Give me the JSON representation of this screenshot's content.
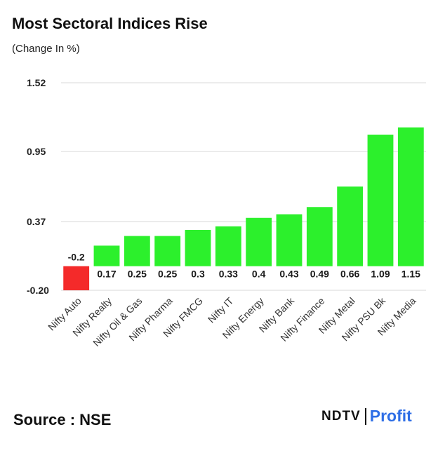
{
  "header": {
    "title": "Most Sectoral Indices Rise",
    "subtitle": "(Change In %)"
  },
  "footer": {
    "source": "Source : NSE",
    "brand_main": "NDTV",
    "brand_sub": "Profit"
  },
  "colors": {
    "positive": "#2cf02c",
    "negative": "#f42a2a",
    "grid": "#d9d9d9",
    "brand": "#2e6ee6"
  },
  "chart_data": {
    "type": "bar",
    "title": "Most Sectoral Indices Rise",
    "subtitle": "(Change In %)",
    "xlabel": "",
    "ylabel": "",
    "categories": [
      "Nifty Auto",
      "Nifty Realty",
      "Nifty Oil & Gas",
      "Nifty Pharma",
      "Nifty FMCG",
      "Nifty IT",
      "Nifty Energy",
      "Nifty Bank",
      "Nifty Finance",
      "Nifty Metal",
      "Nifty PSU Bk",
      "Nifty Media"
    ],
    "values": [
      -0.2,
      0.17,
      0.25,
      0.25,
      0.3,
      0.33,
      0.4,
      0.43,
      0.49,
      0.66,
      1.09,
      1.15
    ],
    "value_labels": [
      "-0.2",
      "0.17",
      "0.25",
      "0.25",
      "0.3",
      "0.33",
      "0.4",
      "0.43",
      "0.49",
      "0.66",
      "1.09",
      "1.15"
    ],
    "yticks": [
      -0.2,
      0.37,
      0.95,
      1.52
    ],
    "ytick_labels": [
      "-0.20",
      "0.37",
      "0.95",
      "1.52"
    ],
    "ylim": [
      -0.2,
      1.52
    ],
    "grid": true,
    "legend": "none"
  }
}
